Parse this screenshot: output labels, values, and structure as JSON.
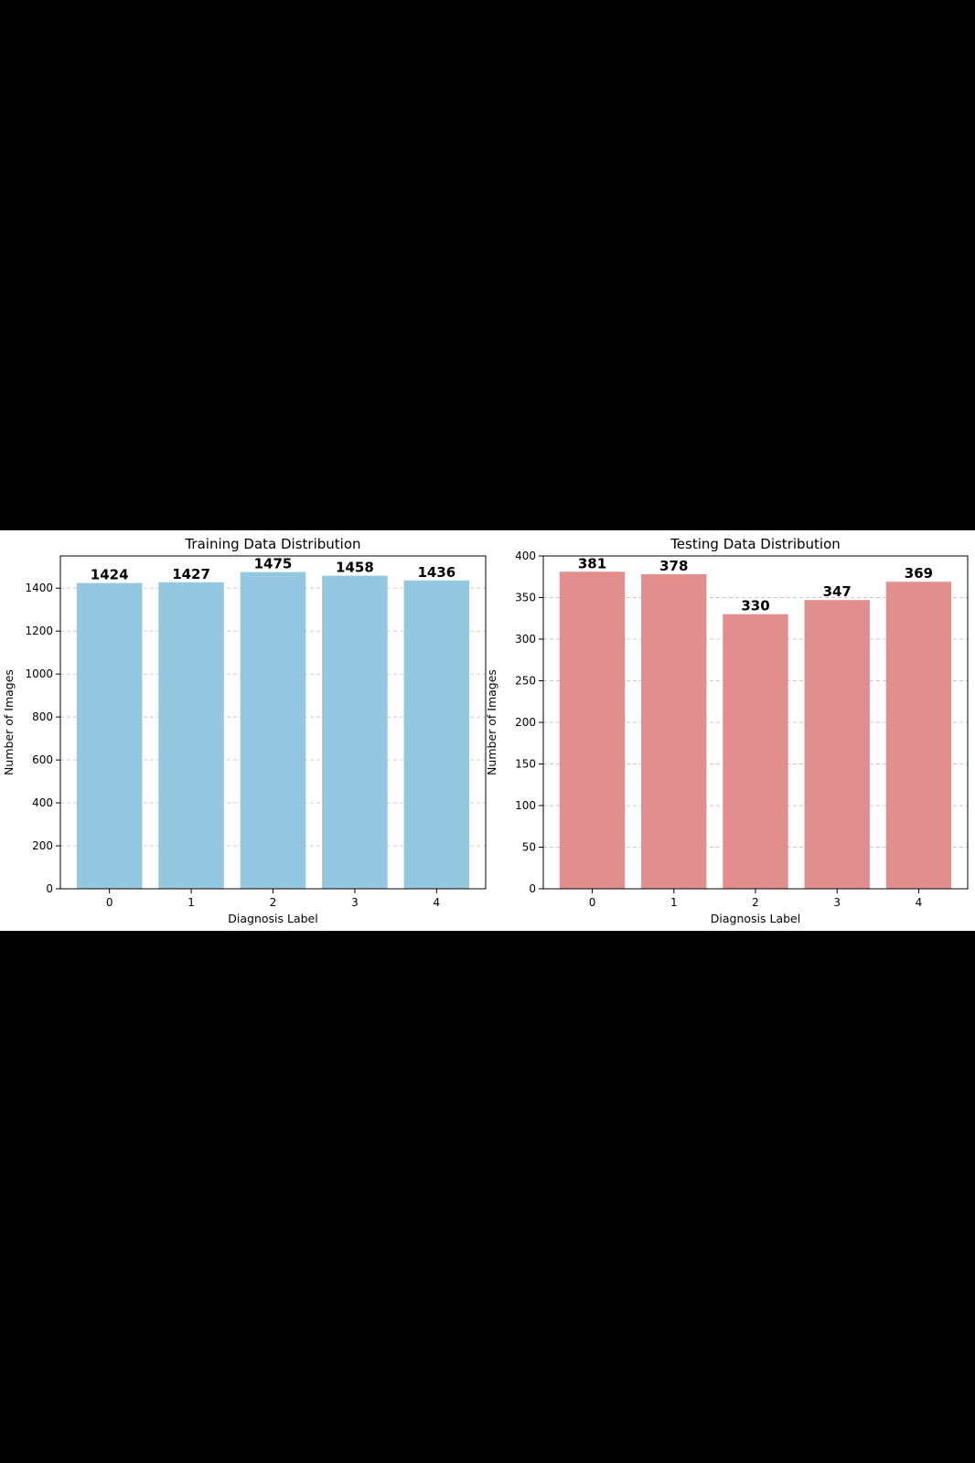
{
  "chart_data": [
    {
      "type": "bar",
      "title": "Training Data Distribution",
      "xlabel": "Diagnosis Label",
      "ylabel": "Number of Images",
      "categories": [
        "0",
        "1",
        "2",
        "3",
        "4"
      ],
      "values": [
        1424,
        1427,
        1475,
        1458,
        1436
      ],
      "data_labels": [
        "1424",
        "1427",
        "1475",
        "1458",
        "1436"
      ],
      "ylim": [
        0,
        1550
      ],
      "yticks": [
        0,
        200,
        400,
        600,
        800,
        1000,
        1200,
        1400
      ],
      "ytick_labels": [
        "0",
        "200",
        "400",
        "600",
        "800",
        "1000",
        "1200",
        "1400"
      ],
      "grid": "y-dashed",
      "color": "#93c8e0"
    },
    {
      "type": "bar",
      "title": "Testing Data Distribution",
      "xlabel": "Diagnosis Label",
      "ylabel": "Number of Images",
      "categories": [
        "0",
        "1",
        "2",
        "3",
        "4"
      ],
      "values": [
        381,
        378,
        330,
        347,
        369
      ],
      "data_labels": [
        "381",
        "378",
        "330",
        "347",
        "369"
      ],
      "ylim": [
        0,
        400
      ],
      "yticks": [
        0,
        50,
        100,
        150,
        200,
        250,
        300,
        350,
        400
      ],
      "ytick_labels": [
        "0",
        "50",
        "100",
        "150",
        "200",
        "250",
        "300",
        "350",
        "400"
      ],
      "grid": "y-dashed",
      "color": "#e28e8e"
    }
  ]
}
